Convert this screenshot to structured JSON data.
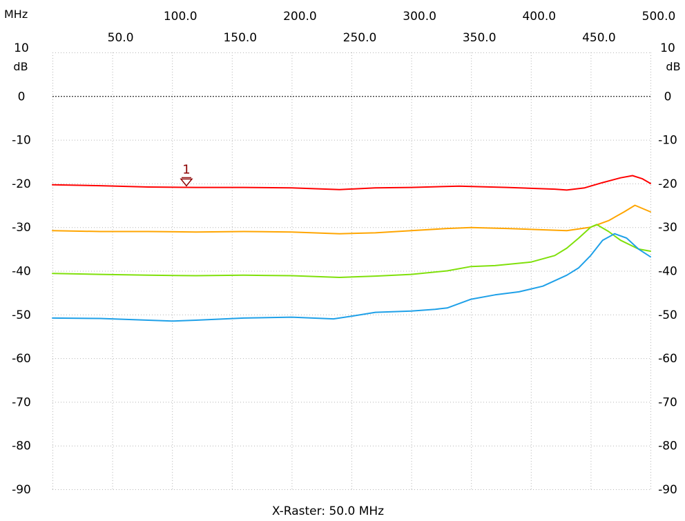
{
  "chart_data": {
    "type": "line",
    "x_unit": "MHz",
    "y_unit": "dB",
    "xlim": [
      0,
      500
    ],
    "ylim": [
      -90,
      10
    ],
    "x_ticks_top_row": [
      "100.0",
      "200.0",
      "300.0",
      "400.0",
      "500.0"
    ],
    "x_ticks_bottom_row": [
      "50.0",
      "150.0",
      "250.0",
      "350.0",
      "450.0"
    ],
    "y_ticks": [
      "10",
      "0",
      "-10",
      "-20",
      "-30",
      "-40",
      "-50",
      "-60",
      "-70",
      "-80",
      "-90"
    ],
    "caption": "X-Raster: 50.0 MHz",
    "grid": true,
    "reference_line_db": 0,
    "marker": {
      "label": "1",
      "x": 112,
      "y": -20.7,
      "color": "#8b0000"
    },
    "series": [
      {
        "color": "#ff0000",
        "x": [
          0,
          40,
          80,
          120,
          160,
          200,
          240,
          270,
          300,
          340,
          380,
          420,
          430,
          445,
          460,
          475,
          485,
          493,
          500
        ],
        "y": [
          -20.3,
          -20.5,
          -20.8,
          -20.9,
          -20.9,
          -21.0,
          -21.4,
          -21.0,
          -20.9,
          -20.6,
          -20.9,
          -21.3,
          -21.5,
          -21.0,
          -19.8,
          -18.7,
          -18.2,
          -18.9,
          -20.0
        ]
      },
      {
        "color": "#ffa500",
        "x": [
          0,
          40,
          80,
          120,
          160,
          200,
          240,
          270,
          300,
          330,
          350,
          380,
          410,
          430,
          450,
          465,
          478,
          487,
          500
        ],
        "y": [
          -30.8,
          -31.0,
          -31.0,
          -31.1,
          -31.0,
          -31.1,
          -31.5,
          -31.3,
          -30.8,
          -30.3,
          -30.1,
          -30.3,
          -30.6,
          -30.8,
          -30.0,
          -28.5,
          -26.5,
          -25.0,
          -26.5
        ]
      },
      {
        "color": "#7fe00a",
        "x": [
          0,
          40,
          80,
          120,
          160,
          200,
          240,
          270,
          300,
          330,
          350,
          370,
          400,
          420,
          430,
          440,
          450,
          455,
          465,
          475,
          490,
          500
        ],
        "y": [
          -40.6,
          -40.8,
          -41.0,
          -41.1,
          -41.0,
          -41.1,
          -41.5,
          -41.2,
          -40.8,
          -40.0,
          -39.0,
          -38.8,
          -38.0,
          -36.5,
          -34.8,
          -32.5,
          -30.0,
          -29.4,
          -31.0,
          -33.0,
          -35.0,
          -35.5
        ]
      },
      {
        "color": "#1ea0e8",
        "x": [
          0,
          40,
          80,
          100,
          120,
          160,
          200,
          235,
          250,
          270,
          300,
          320,
          330,
          350,
          370,
          390,
          410,
          430,
          440,
          450,
          460,
          470,
          480,
          490,
          500
        ],
        "y": [
          -50.8,
          -50.9,
          -51.3,
          -51.5,
          -51.3,
          -50.8,
          -50.6,
          -51.0,
          -50.4,
          -49.5,
          -49.2,
          -48.8,
          -48.5,
          -46.5,
          -45.5,
          -44.8,
          -43.5,
          -41.0,
          -39.3,
          -36.5,
          -33.0,
          -31.5,
          -32.5,
          -35.0,
          -36.8
        ]
      }
    ]
  }
}
